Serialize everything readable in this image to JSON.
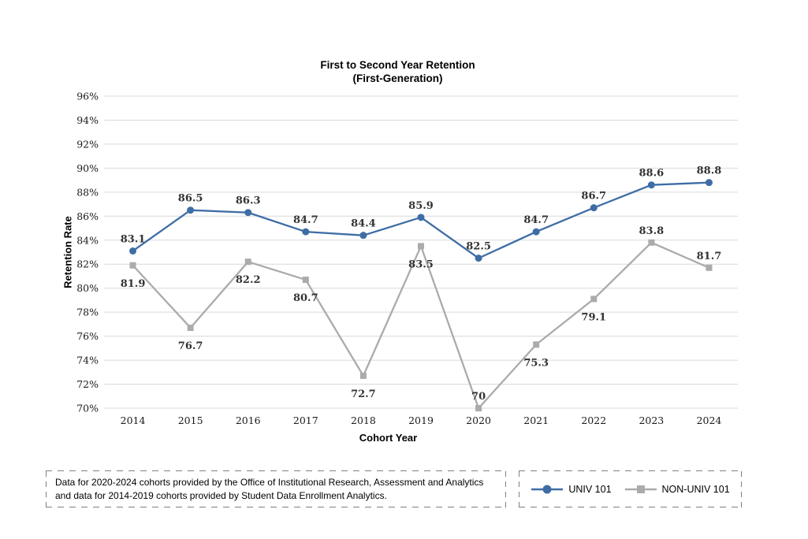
{
  "title": {
    "line1": "First to Second Year Retention",
    "line2": "(First-Generation)"
  },
  "chart_data": {
    "type": "line",
    "categories": [
      "2014",
      "2015",
      "2016",
      "2017",
      "2018",
      "2019",
      "2020",
      "2021",
      "2022",
      "2023",
      "2024"
    ],
    "series": [
      {
        "name": "UNIV 101",
        "color": "#3E6DA5",
        "marker": "circle",
        "values": [
          83.1,
          86.5,
          86.3,
          84.7,
          84.4,
          85.9,
          82.5,
          84.7,
          86.7,
          88.6,
          88.8
        ],
        "label_positions": [
          "above",
          "above",
          "above",
          "above",
          "above",
          "above",
          "above",
          "above",
          "above",
          "above",
          "above"
        ]
      },
      {
        "name": "NON-UNIV 101",
        "color": "#ABABAB",
        "marker": "square",
        "values": [
          81.9,
          76.7,
          82.2,
          80.7,
          72.7,
          83.5,
          70,
          75.3,
          79.1,
          83.8,
          81.7
        ],
        "label_positions": [
          "below",
          "below",
          "below",
          "below",
          "below",
          "below",
          "above",
          "below",
          "below",
          "above",
          "above"
        ]
      }
    ],
    "xlabel": "Cohort Year",
    "ylabel": "Retention Rate",
    "ylim": [
      70,
      96
    ],
    "y_tick_step": 2,
    "y_tick_suffix": "%",
    "grid": "horizontal",
    "gridline_color": "#d9d9d9",
    "legend_position": "bottom-right"
  },
  "footnote": {
    "text": "Data for 2020-2024 cohorts provided by the Office of Institutional Research, Assessment and Analytics and data for 2014-2019 cohorts provided by Student Data Enrollment Analytics."
  }
}
